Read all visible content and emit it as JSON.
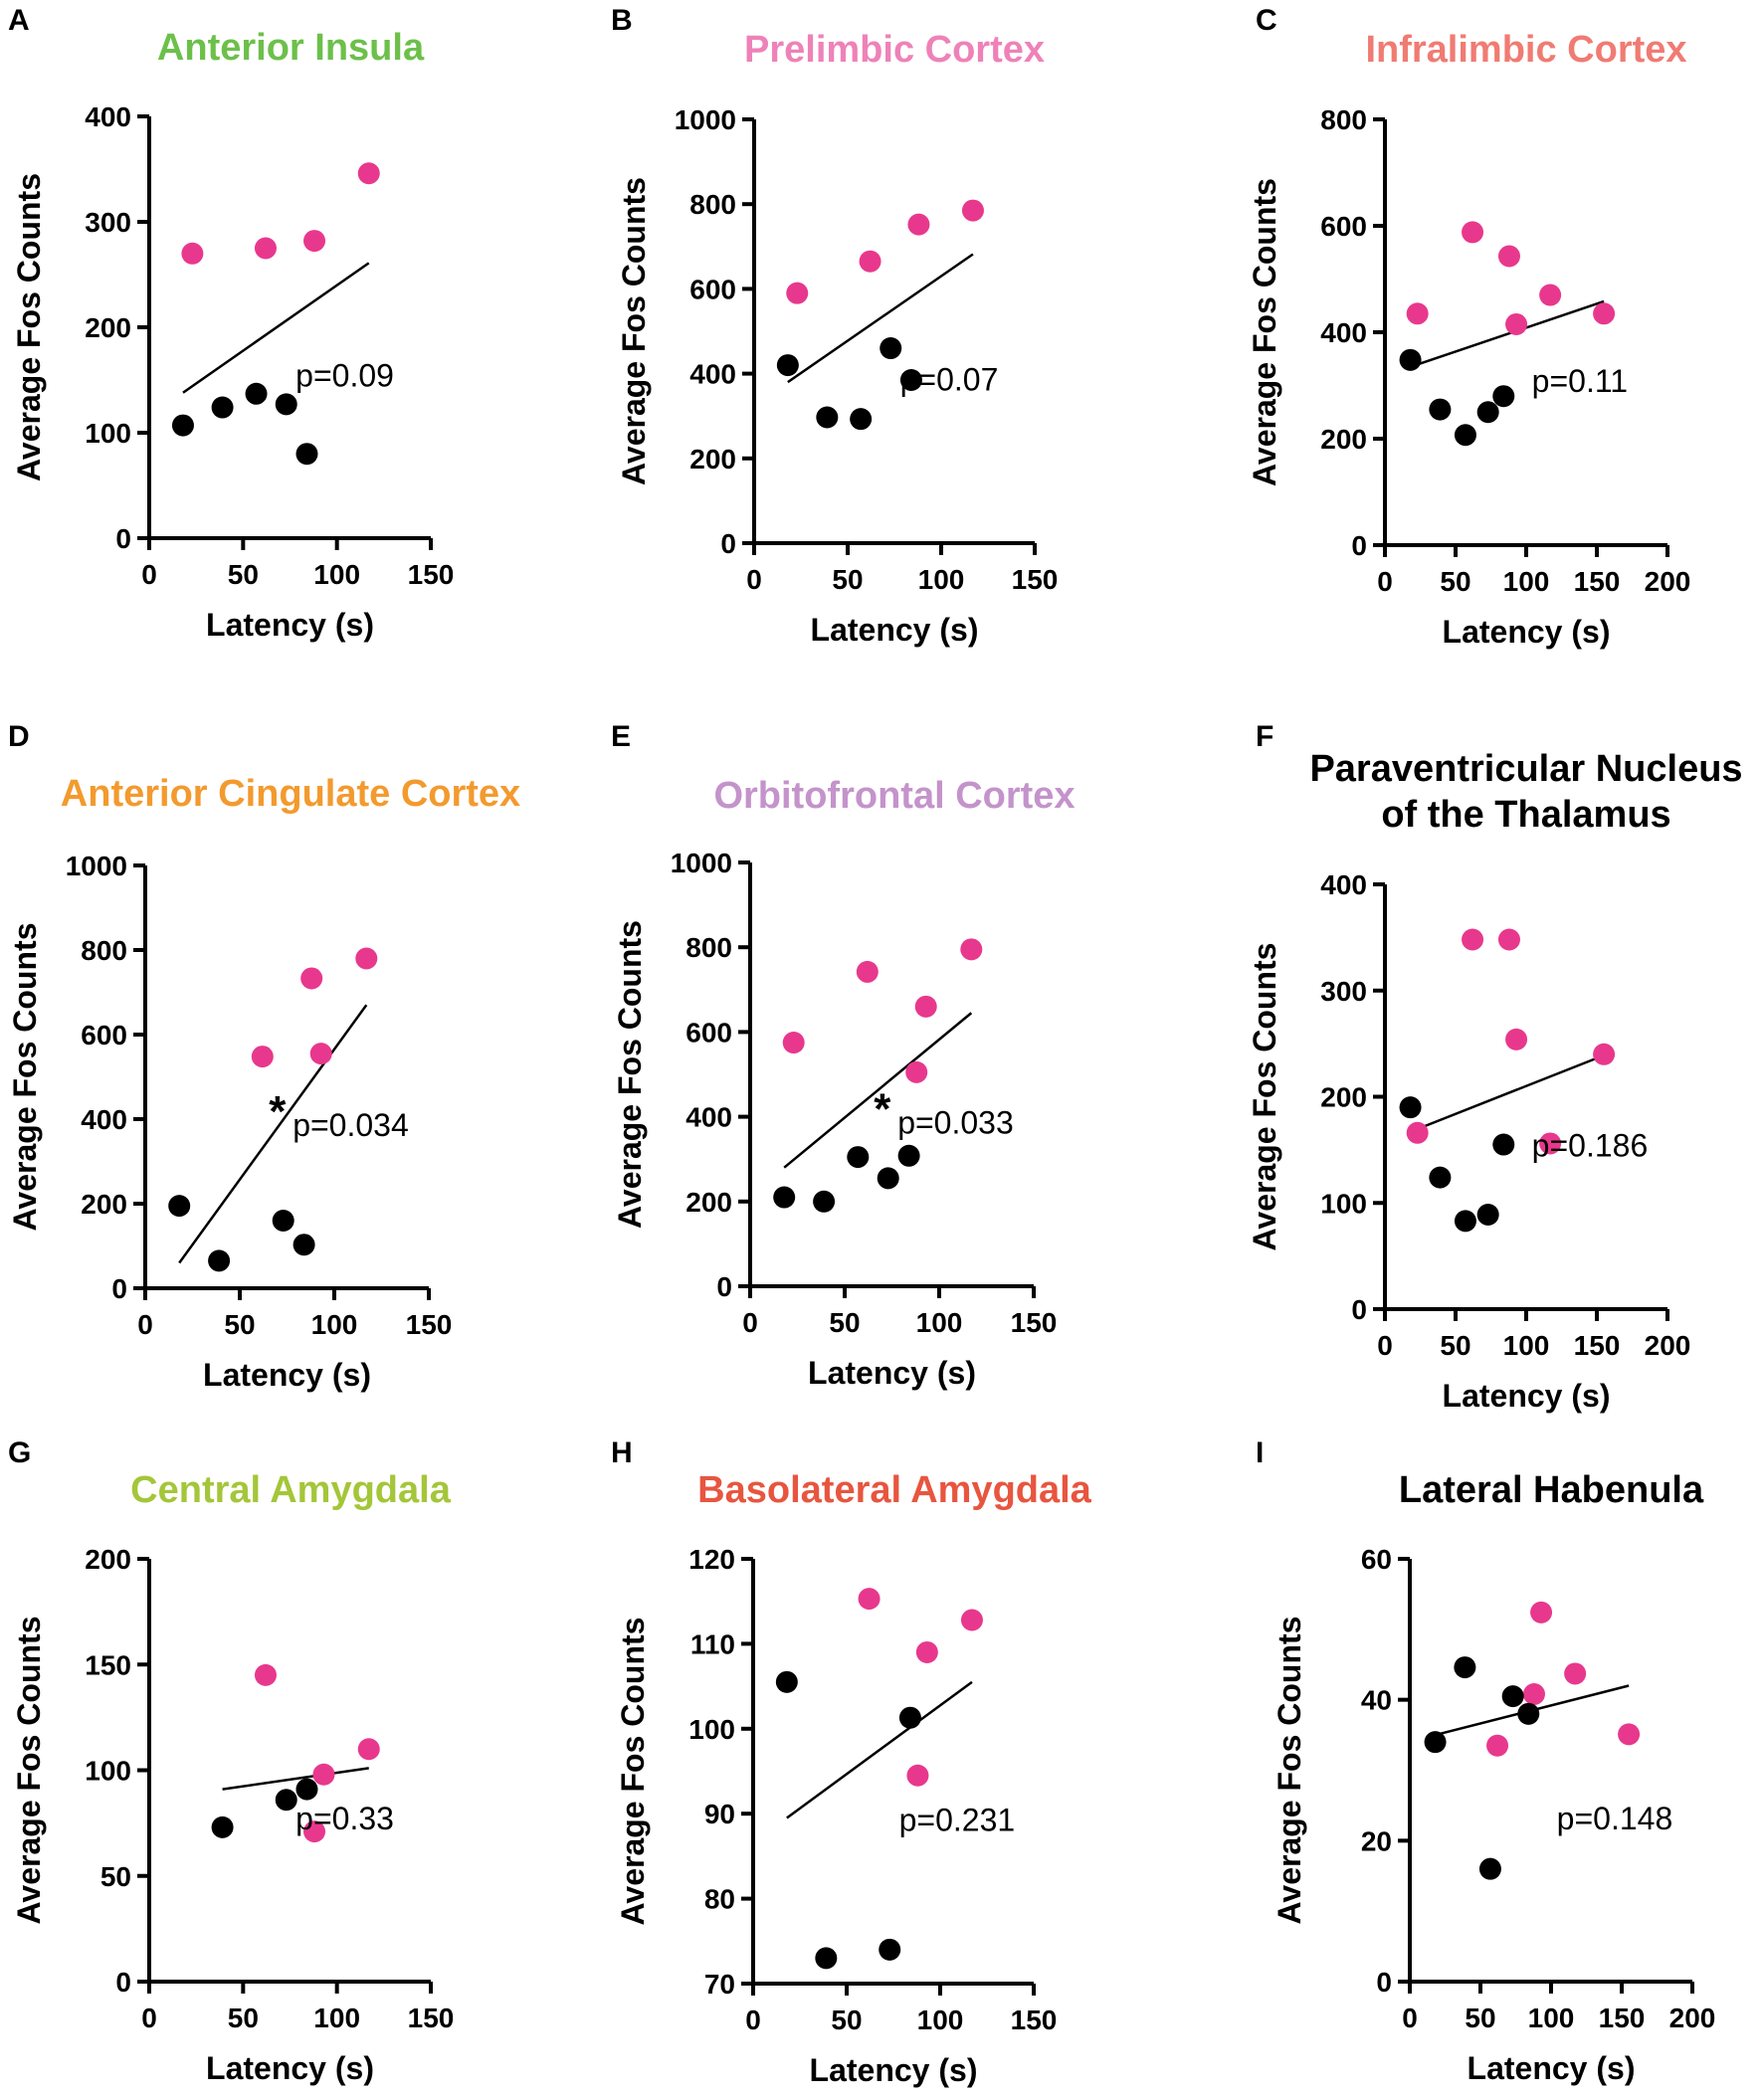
{
  "colors": {
    "group_a": "#e8388d",
    "group_b": "#000000",
    "fit_line": "#000000",
    "axis": "#000000"
  },
  "chart_data": [
    {
      "panel": "A",
      "type": "scatter",
      "title": "Anterior Insula",
      "title_color": "#6cc04a",
      "xlabel": "Latency (s)",
      "ylabel": "Average Fos Counts",
      "xlim": [
        0,
        150
      ],
      "ylim": [
        0,
        400
      ],
      "xticks": [
        0,
        50,
        100,
        150
      ],
      "yticks": [
        0,
        100,
        200,
        300,
        400
      ],
      "series": [
        {
          "name": "pink",
          "color": "#e8388d",
          "points": [
            [
              23,
              270
            ],
            [
              62,
              275
            ],
            [
              88,
              282
            ],
            [
              117,
              346
            ]
          ]
        },
        {
          "name": "black",
          "color": "#000000",
          "points": [
            [
              18,
              107
            ],
            [
              39,
              124
            ],
            [
              57,
              137
            ],
            [
              73,
              127
            ],
            [
              84,
              80
            ]
          ]
        }
      ],
      "fit": [
        [
          18,
          138
        ],
        [
          117,
          261
        ]
      ],
      "annotation": "p=0.09",
      "significant": false
    },
    {
      "panel": "B",
      "type": "scatter",
      "title": "Prelimbic Cortex",
      "title_color": "#ee82b8",
      "xlabel": "Latency (s)",
      "ylabel": "Average Fos Counts",
      "xlim": [
        0,
        150
      ],
      "ylim": [
        0,
        1000
      ],
      "xticks": [
        0,
        50,
        100,
        150
      ],
      "yticks": [
        0,
        200,
        400,
        600,
        800,
        1000
      ],
      "series": [
        {
          "name": "pink",
          "color": "#e8388d",
          "points": [
            [
              23,
              590
            ],
            [
              62,
              665
            ],
            [
              88,
              752
            ],
            [
              117,
              785
            ]
          ]
        },
        {
          "name": "black",
          "color": "#000000",
          "points": [
            [
              18,
              420
            ],
            [
              39,
              297
            ],
            [
              57,
              293
            ],
            [
              73,
              460
            ],
            [
              84,
              385
            ]
          ]
        }
      ],
      "fit": [
        [
          18,
          380
        ],
        [
          117,
          682
        ]
      ],
      "annotation": "p=0.07",
      "significant": false
    },
    {
      "panel": "C",
      "type": "scatter",
      "title": "Infralimbic Cortex",
      "title_color": "#f07b73",
      "xlabel": "Latency (s)",
      "ylabel": "Average Fos Counts",
      "xlim": [
        0,
        200
      ],
      "ylim": [
        0,
        800
      ],
      "xticks": [
        0,
        50,
        100,
        150,
        200
      ],
      "yticks": [
        0,
        200,
        400,
        600,
        800
      ],
      "series": [
        {
          "name": "pink",
          "color": "#e8388d",
          "points": [
            [
              23,
              435
            ],
            [
              62,
              588
            ],
            [
              88,
              543
            ],
            [
              93,
              415
            ],
            [
              117,
              470
            ],
            [
              155,
              435
            ]
          ]
        },
        {
          "name": "black",
          "color": "#000000",
          "points": [
            [
              18,
              348
            ],
            [
              39,
              255
            ],
            [
              57,
              207
            ],
            [
              73,
              250
            ],
            [
              84,
              280
            ]
          ]
        }
      ],
      "fit": [
        [
          18,
          335
        ],
        [
          155,
          458
        ]
      ],
      "annotation": "p=0.11",
      "significant": false
    },
    {
      "panel": "D",
      "type": "scatter",
      "title": "Anterior Cingulate Cortex",
      "title_color": "#f39a2e",
      "xlabel": "Latency (s)",
      "ylabel": "Average Fos Counts",
      "xlim": [
        0,
        150
      ],
      "ylim": [
        0,
        1000
      ],
      "xticks": [
        0,
        50,
        100,
        150
      ],
      "yticks": [
        0,
        200,
        400,
        600,
        800,
        1000
      ],
      "series": [
        {
          "name": "pink",
          "color": "#e8388d",
          "points": [
            [
              62,
              548
            ],
            [
              88,
              733
            ],
            [
              93,
              555
            ],
            [
              117,
              780
            ]
          ]
        },
        {
          "name": "black",
          "color": "#000000",
          "points": [
            [
              18,
              195
            ],
            [
              39,
              65
            ],
            [
              73,
              160
            ],
            [
              84,
              103
            ]
          ]
        }
      ],
      "fit": [
        [
          18,
          60
        ],
        [
          117,
          670
        ]
      ],
      "annotation": "p=0.034",
      "significant": true,
      "significance_marker": "*"
    },
    {
      "panel": "E",
      "type": "scatter",
      "title": "Orbitofrontal Cortex",
      "title_color": "#c493cb",
      "xlabel": "Latency (s)",
      "ylabel": "Average Fos Counts",
      "xlim": [
        0,
        150
      ],
      "ylim": [
        0,
        1000
      ],
      "xticks": [
        0,
        50,
        100,
        150
      ],
      "yticks": [
        0,
        200,
        400,
        600,
        800,
        1000
      ],
      "series": [
        {
          "name": "pink",
          "color": "#e8388d",
          "points": [
            [
              23,
              575
            ],
            [
              62,
              742
            ],
            [
              88,
              505
            ],
            [
              93,
              660
            ],
            [
              117,
              795
            ]
          ]
        },
        {
          "name": "black",
          "color": "#000000",
          "points": [
            [
              18,
              210
            ],
            [
              39,
              200
            ],
            [
              57,
              305
            ],
            [
              73,
              255
            ],
            [
              84,
              308
            ]
          ]
        }
      ],
      "fit": [
        [
          18,
          280
        ],
        [
          117,
          645
        ]
      ],
      "annotation": "p=0.033",
      "significant": true,
      "significance_marker": "*"
    },
    {
      "panel": "F",
      "type": "scatter",
      "title": "Paraventricular Nucleus of the Thalamus",
      "title_lines": [
        "Paraventricular Nucleus",
        "of the Thalamus"
      ],
      "title_color": "#000000",
      "xlabel": "Latency (s)",
      "ylabel": "Average Fos Counts",
      "xlim": [
        0,
        200
      ],
      "ylim": [
        0,
        400
      ],
      "xticks": [
        0,
        50,
        100,
        150,
        200
      ],
      "yticks": [
        0,
        100,
        200,
        300,
        400
      ],
      "series": [
        {
          "name": "pink",
          "color": "#e8388d",
          "points": [
            [
              23,
              166
            ],
            [
              62,
              348
            ],
            [
              88,
              348
            ],
            [
              93,
              254
            ],
            [
              117,
              156
            ],
            [
              155,
              240
            ]
          ]
        },
        {
          "name": "black",
          "color": "#000000",
          "points": [
            [
              18,
              190
            ],
            [
              39,
              124
            ],
            [
              57,
              83
            ],
            [
              73,
              89
            ],
            [
              84,
              155
            ]
          ]
        }
      ],
      "fit": [
        [
          18,
          167
        ],
        [
          155,
          239
        ]
      ],
      "annotation": "p=0.186",
      "significant": false
    },
    {
      "panel": "G",
      "type": "scatter",
      "title": "Central Amygdala",
      "title_color": "#a4c639",
      "xlabel": "Latency (s)",
      "ylabel": "Average Fos Counts",
      "xlim": [
        0,
        150
      ],
      "ylim": [
        0,
        200
      ],
      "xticks": [
        0,
        50,
        100,
        150
      ],
      "yticks": [
        0,
        50,
        100,
        150,
        200
      ],
      "series": [
        {
          "name": "pink",
          "color": "#e8388d",
          "points": [
            [
              62,
              145
            ],
            [
              88,
              71
            ],
            [
              93,
              98
            ],
            [
              117,
              110
            ]
          ]
        },
        {
          "name": "black",
          "color": "#000000",
          "points": [
            [
              39,
              73
            ],
            [
              73,
              86
            ],
            [
              84,
              91
            ]
          ]
        }
      ],
      "fit": [
        [
          39,
          91
        ],
        [
          117,
          101
        ]
      ],
      "annotation": "p=0.33",
      "significant": false
    },
    {
      "panel": "H",
      "type": "scatter",
      "title": "Basolateral Amygdala",
      "title_color": "#e8553f",
      "xlabel": "Latency (s)",
      "ylabel": "Average Fos Counts",
      "xlim": [
        0,
        150
      ],
      "ylim": [
        70,
        120
      ],
      "xticks": [
        0,
        50,
        100,
        150
      ],
      "yticks": [
        70,
        80,
        90,
        100,
        110,
        120
      ],
      "series": [
        {
          "name": "pink",
          "color": "#e8388d",
          "points": [
            [
              62,
              115.3
            ],
            [
              88,
              94.5
            ],
            [
              93,
              109
            ],
            [
              117,
              112.8
            ]
          ]
        },
        {
          "name": "black",
          "color": "#000000",
          "points": [
            [
              18,
              105.5
            ],
            [
              39,
              73
            ],
            [
              73,
              74
            ],
            [
              84,
              101.3
            ]
          ]
        }
      ],
      "fit": [
        [
          18,
          89.5
        ],
        [
          117,
          105.5
        ]
      ],
      "annotation": "p=0.231",
      "significant": false
    },
    {
      "panel": "I",
      "type": "scatter",
      "title": "Lateral Habenula",
      "title_color": "#000000",
      "xlabel": "Latency (s)",
      "ylabel": "Average Fos Counts",
      "xlim": [
        0,
        200
      ],
      "ylim": [
        0,
        60
      ],
      "xticks": [
        0,
        50,
        100,
        150,
        200
      ],
      "yticks": [
        0,
        20,
        40,
        60
      ],
      "series": [
        {
          "name": "pink",
          "color": "#e8388d",
          "points": [
            [
              62,
              33.5
            ],
            [
              88,
              40.8
            ],
            [
              93,
              52.4
            ],
            [
              117,
              43.7
            ],
            [
              155,
              35.1
            ]
          ]
        },
        {
          "name": "black",
          "color": "#000000",
          "points": [
            [
              18,
              34
            ],
            [
              39,
              44.6
            ],
            [
              57,
              16
            ],
            [
              73,
              40.5
            ],
            [
              84,
              38
            ]
          ]
        }
      ],
      "fit": [
        [
          18,
          35
        ],
        [
          155,
          42
        ]
      ],
      "annotation": "p=0.148",
      "significant": false
    }
  ]
}
